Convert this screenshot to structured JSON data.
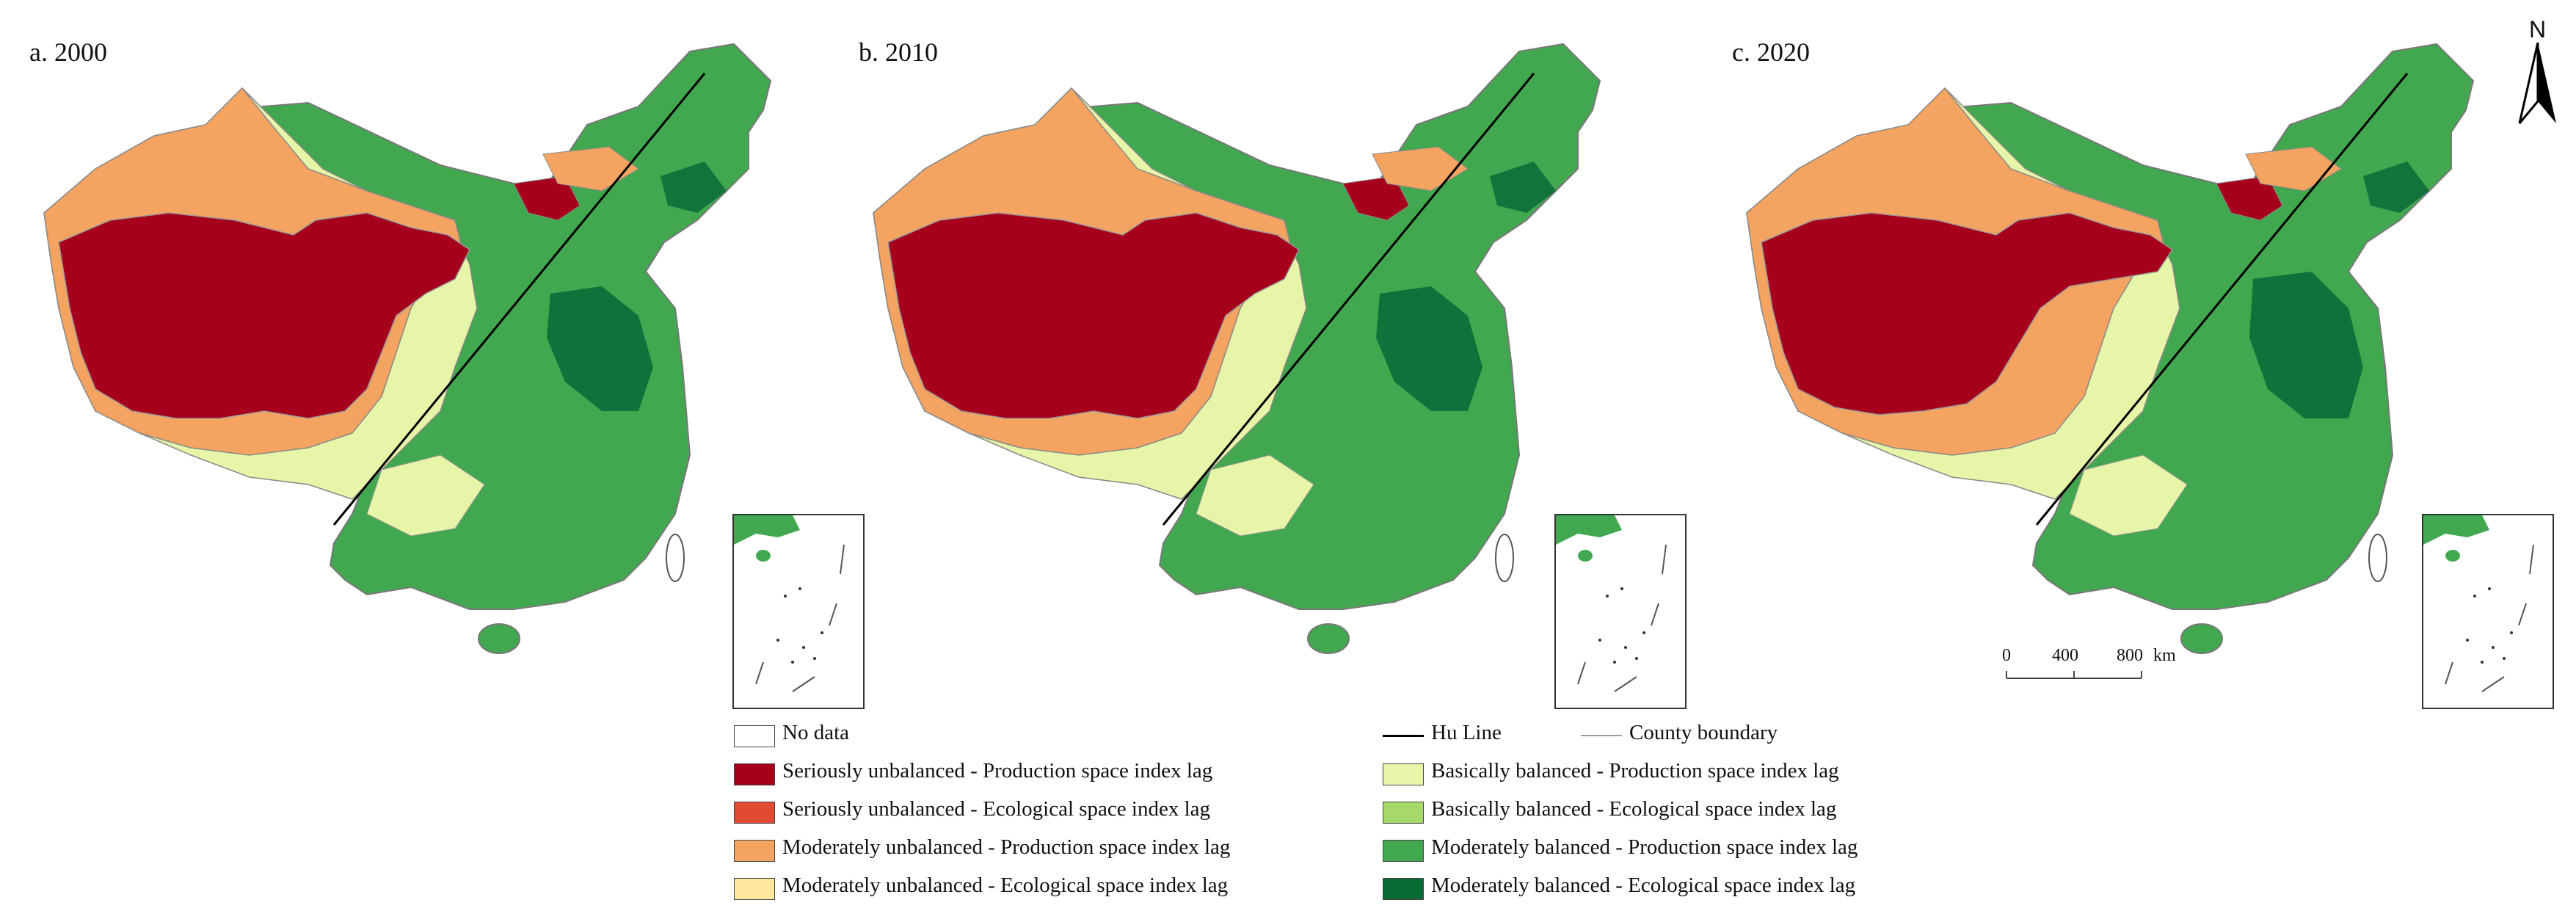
{
  "panels": [
    {
      "id": "a",
      "title": "a. 2000",
      "west_red": "#a6001c"
    },
    {
      "id": "b",
      "title": "b. 2010",
      "west_red": "#a6001c"
    },
    {
      "id": "c",
      "title": "c. 2020",
      "west_red": "#a6001c"
    }
  ],
  "north_arrow": {
    "label": "N"
  },
  "scale_bar": {
    "ticks": [
      "0",
      "400",
      "800"
    ],
    "unit": "km"
  },
  "legend": {
    "left": [
      {
        "label": "No data",
        "color": "#ffffff"
      },
      {
        "label": "Seriously unbalanced - Production space index lag",
        "color": "#a6001c"
      },
      {
        "label": "Seriously unbalanced - Ecological space index lag",
        "color": "#e34a33"
      },
      {
        "label": "Moderately unbalanced - Production space index lag",
        "color": "#f4a460"
      },
      {
        "label": "Moderately unbalanced - Ecological space index lag",
        "color": "#ffe8a0"
      }
    ],
    "right_lines": [
      {
        "label": "Hu Line",
        "color": "#000000"
      },
      {
        "label": "County boundary",
        "color": "#9a9a9a"
      }
    ],
    "right": [
      {
        "label": "Basically balanced - Production space index lag",
        "color": "#e6f5a8"
      },
      {
        "label": "Basically balanced - Ecological space index lag",
        "color": "#a6d96a"
      },
      {
        "label": "Moderately balanced - Production space index lag",
        "color": "#41a84f"
      },
      {
        "label": "Moderately balanced - Ecological space index lag",
        "color": "#0b6b37"
      }
    ]
  }
}
